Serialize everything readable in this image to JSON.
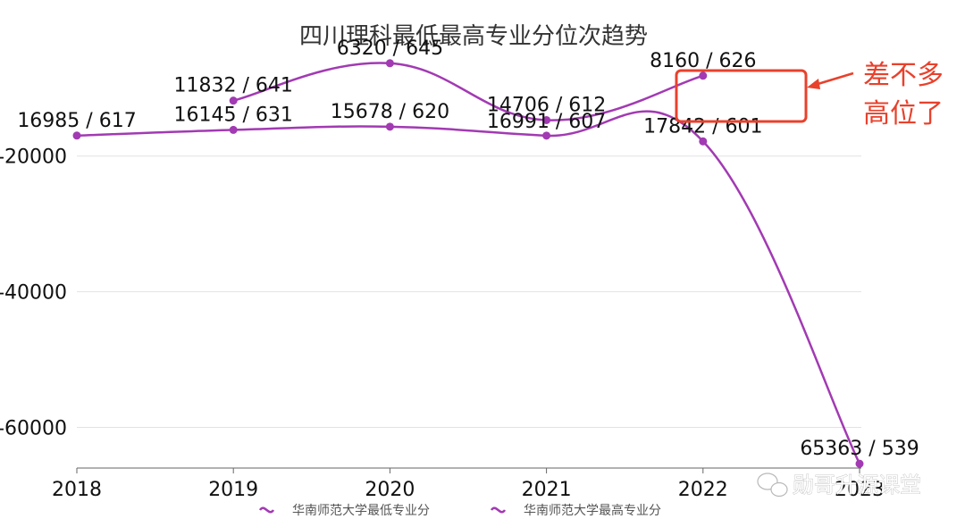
{
  "chart_data": {
    "type": "line",
    "title": "四川理科最低最高专业分位次趋势",
    "categories": [
      "2018",
      "2019",
      "2020",
      "2021",
      "2022",
      "2023"
    ],
    "x_tick_labels": [
      "2018",
      "2019",
      "2020",
      "2021",
      "2022",
      "2023"
    ],
    "y_tick_labels": [
      "-20000",
      "-40000",
      "-60000"
    ],
    "yticks": [
      -20000,
      -40000,
      -60000
    ],
    "ylim": [
      -66000,
      -2000
    ],
    "xlabel": "",
    "ylabel": "",
    "grid": true,
    "legend_position": "bottom",
    "series": [
      {
        "name": "华南师范大学最低专业分",
        "color": "#a23ab3",
        "values": [
          -16985,
          -16145,
          -15678,
          -16991,
          -17842,
          -65363
        ],
        "labels": [
          "16985 / 617",
          "16145 / 631",
          "15678 / 620",
          "16991 / 607",
          "17842 / 601",
          "65363 / 539"
        ]
      },
      {
        "name": "华南师范大学最高专业分",
        "color": "#a23ab3",
        "values": [
          null,
          -11832,
          -6320,
          -14706,
          -8160,
          null
        ],
        "labels": [
          null,
          "11832 / 641",
          "6320 / 645",
          "14706 / 612",
          "8160 / 626",
          null
        ]
      }
    ],
    "annotation": {
      "text_line1": "差不多",
      "text_line2": "高位了",
      "color": "#e8412c"
    }
  },
  "watermark": {
    "icon": "wechat-icon",
    "text": "勋哥升源课堂"
  }
}
